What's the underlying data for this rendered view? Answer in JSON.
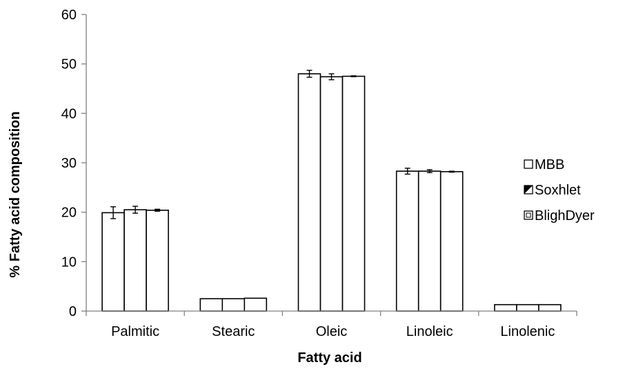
{
  "chart_data": {
    "type": "bar",
    "xlabel": "Fatty acid",
    "ylabel": "% Fatty acid composition",
    "ylim": [
      0,
      60
    ],
    "yticks": [
      0,
      10,
      20,
      30,
      40,
      50,
      60
    ],
    "grid": false,
    "legend_position": "right",
    "categories": [
      "Palmitic",
      "Stearic",
      "Oleic",
      "Linoleic",
      "Linolenic"
    ],
    "series": [
      {
        "name": "MBB",
        "values": [
          19.9,
          2.5,
          48.0,
          28.3,
          1.3
        ],
        "errors": [
          1.2,
          0.0,
          0.7,
          0.6,
          0.0
        ],
        "pattern": "open"
      },
      {
        "name": "Soxhlet",
        "values": [
          20.5,
          2.5,
          47.4,
          28.3,
          1.3
        ],
        "errors": [
          0.7,
          0.0,
          0.6,
          0.3,
          0.0
        ],
        "pattern": "diagonal"
      },
      {
        "name": "BlighDyer",
        "values": [
          20.4,
          2.6,
          47.5,
          28.2,
          1.3
        ],
        "errors": [
          0.2,
          0.0,
          0.1,
          0.1,
          0.0
        ],
        "pattern": "inset"
      }
    ]
  }
}
